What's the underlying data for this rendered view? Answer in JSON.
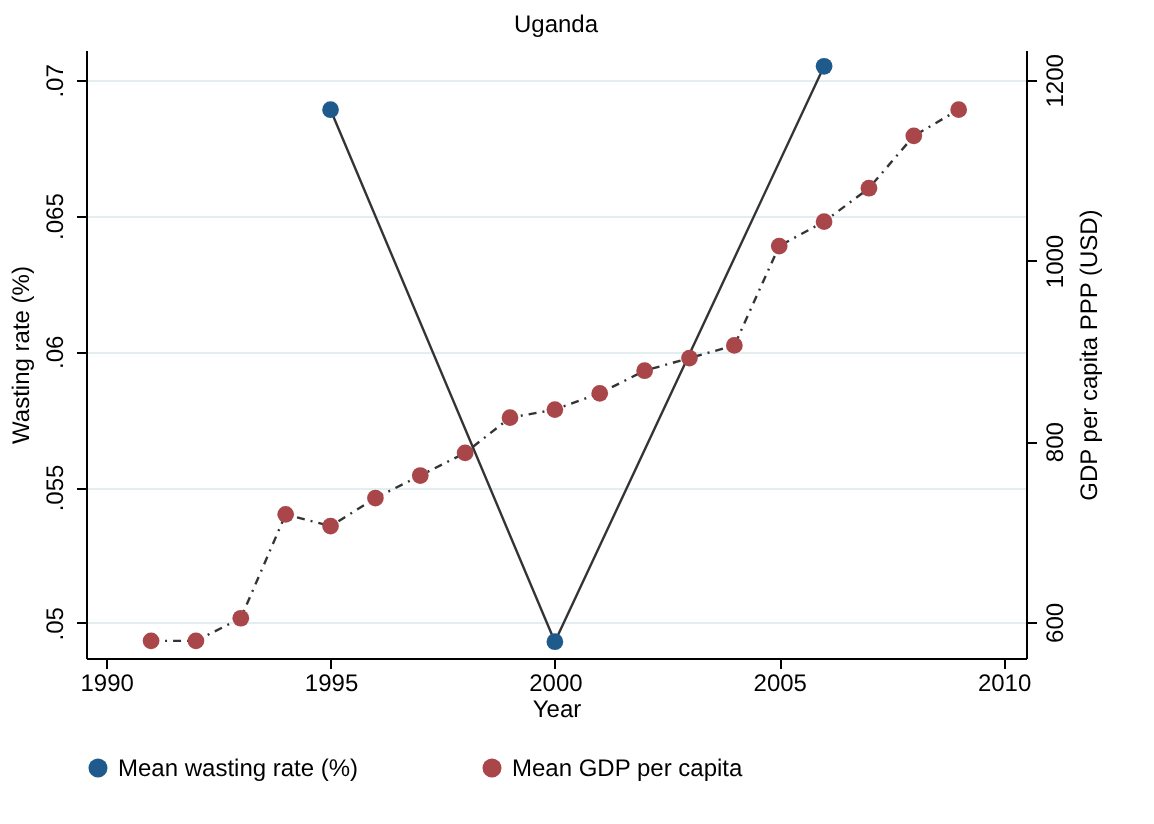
{
  "chart_data": {
    "type": "line",
    "title": "Uganda",
    "xlabel": "Year",
    "ylabel": "Wasting rate (%)",
    "y2label": "GDP per capita PPP (USD)",
    "xlim": [
      1989.55,
      2010.5
    ],
    "xticks": [
      1990,
      1995,
      2000,
      2005,
      2010
    ],
    "ylim": [
      0.0487,
      0.0711
    ],
    "yticks": [
      {
        "value": 0.05,
        "label": ".05"
      },
      {
        "value": 0.055,
        "label": ".055"
      },
      {
        "value": 0.06,
        "label": ".06"
      },
      {
        "value": 0.065,
        "label": ".065"
      },
      {
        "value": 0.07,
        "label": ".07"
      }
    ],
    "y2lim": [
      560,
      1233
    ],
    "y2ticks": [
      600,
      800,
      1000,
      1200
    ],
    "grid": "y",
    "legend": "bottom",
    "marker": "circle",
    "series": [
      {
        "name": "Mean wasting rate (%)",
        "color": "#1f5a8c",
        "line_style": "solid",
        "x": [
          1995,
          2000,
          2006
        ],
        "values": [
          0.0689,
          0.0493,
          0.0705
        ]
      },
      {
        "name": "Mean GDP per capita",
        "color": "#a8464a",
        "line_style": "dashed",
        "axis": "y2",
        "x": [
          1991,
          1992,
          1993,
          1994,
          1995,
          1996,
          1997,
          1998,
          1999,
          2000,
          2001,
          2002,
          2003,
          2004,
          2005,
          2006,
          2007,
          2008,
          2009
        ],
        "values": [
          579,
          579,
          604,
          719,
          706,
          737,
          762,
          787,
          826,
          835,
          853,
          878,
          892,
          906,
          1016,
          1043,
          1080,
          1138,
          1167
        ]
      }
    ]
  }
}
